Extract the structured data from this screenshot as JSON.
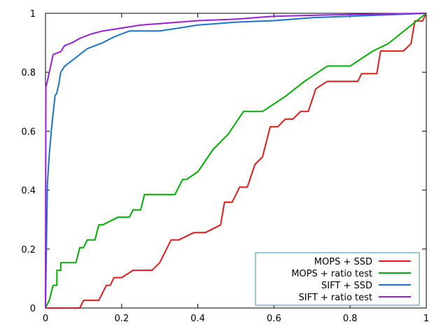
{
  "chart_data": {
    "type": "line",
    "title": "",
    "xlabel": "",
    "ylabel": "",
    "xlim": [
      0,
      1
    ],
    "ylim": [
      0,
      1
    ],
    "x_ticks": [
      "0",
      "0.2",
      "0.4",
      "0.6",
      "0.8",
      "1"
    ],
    "y_ticks": [
      "0",
      "0.2",
      "0.4",
      "0.6",
      "0.8",
      "1"
    ],
    "grid": false,
    "legend_position": "bottom-right",
    "series": [
      {
        "name": "MOPS + SSD",
        "color": "#e41a1c",
        "points": [
          [
            0,
            0
          ],
          [
            0.09,
            0
          ],
          [
            0.1,
            0.026
          ],
          [
            0.14,
            0.026
          ],
          [
            0.16,
            0.077
          ],
          [
            0.17,
            0.077
          ],
          [
            0.18,
            0.103
          ],
          [
            0.2,
            0.103
          ],
          [
            0.23,
            0.128
          ],
          [
            0.26,
            0.128
          ],
          [
            0.28,
            0.128
          ],
          [
            0.3,
            0.154
          ],
          [
            0.33,
            0.231
          ],
          [
            0.35,
            0.231
          ],
          [
            0.39,
            0.256
          ],
          [
            0.42,
            0.256
          ],
          [
            0.46,
            0.282
          ],
          [
            0.47,
            0.359
          ],
          [
            0.49,
            0.359
          ],
          [
            0.51,
            0.41
          ],
          [
            0.53,
            0.41
          ],
          [
            0.55,
            0.487
          ],
          [
            0.57,
            0.513
          ],
          [
            0.59,
            0.615
          ],
          [
            0.61,
            0.615
          ],
          [
            0.63,
            0.641
          ],
          [
            0.65,
            0.641
          ],
          [
            0.67,
            0.667
          ],
          [
            0.69,
            0.667
          ],
          [
            0.71,
            0.744
          ],
          [
            0.74,
            0.769
          ],
          [
            0.82,
            0.769
          ],
          [
            0.83,
            0.795
          ],
          [
            0.87,
            0.795
          ],
          [
            0.88,
            0.872
          ],
          [
            0.94,
            0.872
          ],
          [
            0.96,
            0.897
          ],
          [
            0.97,
            0.974
          ],
          [
            0.99,
            0.974
          ],
          [
            1,
            1
          ]
        ]
      },
      {
        "name": "MOPS + ratio test",
        "color": "#00b000",
        "points": [
          [
            0,
            0
          ],
          [
            0.01,
            0.026
          ],
          [
            0.02,
            0.077
          ],
          [
            0.03,
            0.077
          ],
          [
            0.03,
            0.128
          ],
          [
            0.04,
            0.128
          ],
          [
            0.04,
            0.154
          ],
          [
            0.07,
            0.154
          ],
          [
            0.08,
            0.154
          ],
          [
            0.09,
            0.205
          ],
          [
            0.1,
            0.205
          ],
          [
            0.11,
            0.231
          ],
          [
            0.13,
            0.231
          ],
          [
            0.14,
            0.282
          ],
          [
            0.15,
            0.282
          ],
          [
            0.19,
            0.308
          ],
          [
            0.22,
            0.308
          ],
          [
            0.23,
            0.333
          ],
          [
            0.25,
            0.333
          ],
          [
            0.26,
            0.385
          ],
          [
            0.29,
            0.385
          ],
          [
            0.34,
            0.385
          ],
          [
            0.36,
            0.436
          ],
          [
            0.37,
            0.436
          ],
          [
            0.4,
            0.462
          ],
          [
            0.44,
            0.538
          ],
          [
            0.48,
            0.59
          ],
          [
            0.52,
            0.667
          ],
          [
            0.57,
            0.667
          ],
          [
            0.63,
            0.718
          ],
          [
            0.68,
            0.769
          ],
          [
            0.74,
            0.821
          ],
          [
            0.8,
            0.821
          ],
          [
            0.86,
            0.872
          ],
          [
            0.9,
            0.897
          ],
          [
            0.95,
            0.949
          ],
          [
            1,
            1
          ]
        ]
      },
      {
        "name": "SIFT + SSD",
        "color": "#1874cd",
        "points": [
          [
            0,
            0
          ],
          [
            0.002,
            0.17
          ],
          [
            0.005,
            0.42
          ],
          [
            0.01,
            0.52
          ],
          [
            0.015,
            0.6
          ],
          [
            0.02,
            0.66
          ],
          [
            0.025,
            0.72
          ],
          [
            0.03,
            0.73
          ],
          [
            0.035,
            0.76
          ],
          [
            0.04,
            0.8
          ],
          [
            0.05,
            0.82
          ],
          [
            0.06,
            0.83
          ],
          [
            0.08,
            0.85
          ],
          [
            0.1,
            0.87
          ],
          [
            0.11,
            0.88
          ],
          [
            0.13,
            0.89
          ],
          [
            0.15,
            0.9
          ],
          [
            0.18,
            0.92
          ],
          [
            0.2,
            0.93
          ],
          [
            0.22,
            0.94
          ],
          [
            0.3,
            0.94
          ],
          [
            0.35,
            0.95
          ],
          [
            0.4,
            0.96
          ],
          [
            0.45,
            0.965
          ],
          [
            0.5,
            0.97
          ],
          [
            0.6,
            0.975
          ],
          [
            0.7,
            0.985
          ],
          [
            0.8,
            0.99
          ],
          [
            0.9,
            0.995
          ],
          [
            1,
            1
          ]
        ]
      },
      {
        "name": "SIFT + ratio test",
        "color": "#9a1fd6",
        "points": [
          [
            0,
            0
          ],
          [
            0.001,
            0.75
          ],
          [
            0.005,
            0.77
          ],
          [
            0.01,
            0.8
          ],
          [
            0.015,
            0.83
          ],
          [
            0.02,
            0.86
          ],
          [
            0.03,
            0.865
          ],
          [
            0.04,
            0.87
          ],
          [
            0.05,
            0.89
          ],
          [
            0.07,
            0.9
          ],
          [
            0.09,
            0.915
          ],
          [
            0.12,
            0.93
          ],
          [
            0.15,
            0.94
          ],
          [
            0.2,
            0.95
          ],
          [
            0.25,
            0.96
          ],
          [
            0.3,
            0.965
          ],
          [
            0.4,
            0.975
          ],
          [
            0.5,
            0.98
          ],
          [
            0.6,
            0.99
          ],
          [
            0.7,
            0.993
          ],
          [
            0.8,
            0.996
          ],
          [
            0.9,
            0.998
          ],
          [
            1,
            1
          ]
        ]
      }
    ]
  }
}
